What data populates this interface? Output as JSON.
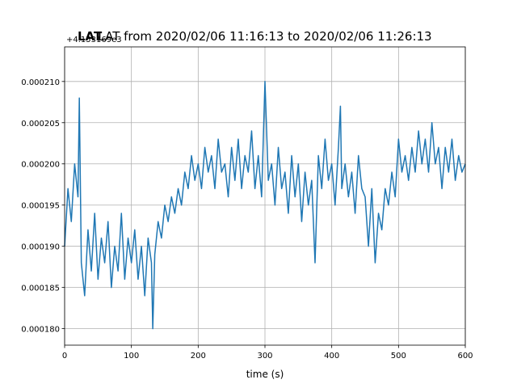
{
  "chart_data": {
    "type": "line",
    "title": "LAT from 2020/02/06 11:16:13 to 2020/02/06 11:26:13",
    "title_bold": "LAT",
    "offset_text": "+4.153169e3",
    "xlabel": "time (s)",
    "color": "#1f77b4",
    "grid": true,
    "xlim": [
      0,
      600
    ],
    "xticks": [
      0,
      100,
      200,
      300,
      400,
      500,
      600
    ],
    "ylim": [
      0.000178,
      0.0002142
    ],
    "yticks": [
      {
        "value": 0.00018,
        "label": "0.000180"
      },
      {
        "value": 0.000185,
        "label": "0.000185"
      },
      {
        "value": 0.00019,
        "label": "0.000190"
      },
      {
        "value": 0.000195,
        "label": "0.000195"
      },
      {
        "value": 0.0002,
        "label": "0.000200"
      },
      {
        "value": 0.000205,
        "label": "0.000205"
      },
      {
        "value": 0.00021,
        "label": "0.000210"
      }
    ],
    "x": [
      0,
      5,
      10,
      15,
      20,
      22,
      25,
      30,
      35,
      40,
      45,
      50,
      55,
      60,
      65,
      70,
      75,
      80,
      85,
      90,
      95,
      100,
      105,
      110,
      115,
      120,
      125,
      130,
      132,
      135,
      140,
      145,
      150,
      155,
      160,
      165,
      170,
      175,
      180,
      185,
      190,
      195,
      200,
      205,
      210,
      215,
      220,
      225,
      230,
      235,
      240,
      245,
      250,
      255,
      260,
      265,
      270,
      275,
      280,
      285,
      290,
      295,
      300,
      305,
      310,
      315,
      320,
      325,
      330,
      335,
      340,
      345,
      350,
      355,
      360,
      365,
      370,
      375,
      380,
      385,
      390,
      395,
      400,
      405,
      410,
      413,
      415,
      420,
      425,
      430,
      435,
      440,
      445,
      450,
      455,
      460,
      465,
      470,
      475,
      480,
      485,
      490,
      495,
      500,
      505,
      510,
      515,
      520,
      525,
      530,
      535,
      540,
      545,
      550,
      555,
      560,
      565,
      570,
      575,
      580,
      585,
      590,
      595,
      600
    ],
    "values": [
      0.00019,
      0.000197,
      0.000193,
      0.0002,
      0.000196,
      0.000208,
      0.000188,
      0.000184,
      0.000192,
      0.000187,
      0.000194,
      0.000186,
      0.000191,
      0.000188,
      0.000193,
      0.000185,
      0.00019,
      0.000187,
      0.000194,
      0.000186,
      0.000191,
      0.000188,
      0.000192,
      0.000186,
      0.00019,
      0.000184,
      0.000191,
      0.000188,
      0.00018,
      0.000189,
      0.000193,
      0.000191,
      0.000195,
      0.000193,
      0.000196,
      0.000194,
      0.000197,
      0.000195,
      0.000199,
      0.000197,
      0.000201,
      0.000198,
      0.0002,
      0.000197,
      0.000202,
      0.000199,
      0.000201,
      0.000197,
      0.000203,
      0.000199,
      0.0002,
      0.000196,
      0.000202,
      0.000198,
      0.000203,
      0.000197,
      0.000201,
      0.000199,
      0.000204,
      0.000197,
      0.000201,
      0.000196,
      0.00021,
      0.000198,
      0.0002,
      0.000195,
      0.000202,
      0.000197,
      0.000199,
      0.000194,
      0.000201,
      0.000196,
      0.0002,
      0.000193,
      0.000199,
      0.000195,
      0.000198,
      0.000188,
      0.000201,
      0.000197,
      0.000203,
      0.000198,
      0.0002,
      0.000195,
      0.000202,
      0.000207,
      0.000197,
      0.0002,
      0.000196,
      0.000199,
      0.000194,
      0.000201,
      0.000197,
      0.000196,
      0.00019,
      0.000197,
      0.000188,
      0.000194,
      0.000192,
      0.000197,
      0.000195,
      0.000199,
      0.000196,
      0.000203,
      0.000199,
      0.000201,
      0.000198,
      0.000202,
      0.000199,
      0.000204,
      0.0002,
      0.000203,
      0.000199,
      0.000205,
      0.0002,
      0.000202,
      0.000197,
      0.000202,
      0.000199,
      0.000203,
      0.000198,
      0.000201,
      0.000199,
      0.0002
    ]
  }
}
